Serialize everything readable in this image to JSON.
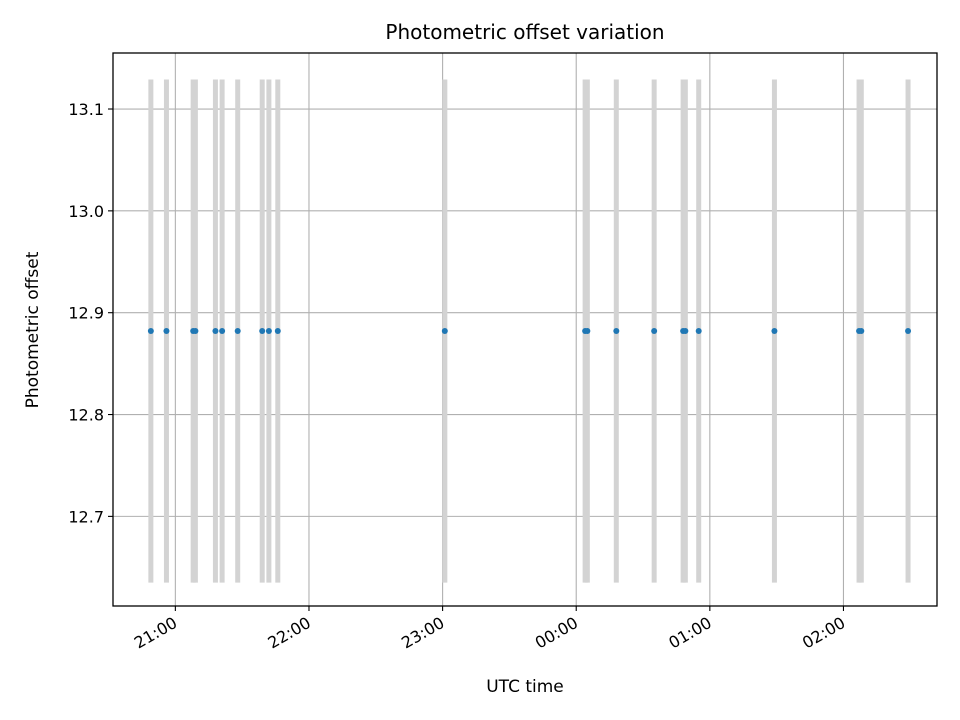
{
  "chart_data": {
    "type": "scatter",
    "title": "Photometric offset variation",
    "xlabel": "UTC time",
    "ylabel": "Photometric offset",
    "x_axis": {
      "kind": "time",
      "range": [
        "20:32",
        "02:42"
      ],
      "ticks": [
        "21:00",
        "22:00",
        "23:00",
        "00:00",
        "01:00",
        "02:00"
      ]
    },
    "y_axis": {
      "range": [
        12.612,
        13.155
      ],
      "ticks": [
        "12.7",
        "12.8",
        "12.9",
        "13.0",
        "13.1"
      ],
      "tick_values": [
        12.7,
        12.8,
        12.9,
        13.0,
        13.1
      ]
    },
    "grid": true,
    "series": [
      {
        "color": "#1f77b4",
        "marker": "dot",
        "error_bar_color": "#d3d3d3",
        "y_error": 0.247,
        "points": [
          {
            "x": "20:49",
            "y": 12.882
          },
          {
            "x": "20:56",
            "y": 12.882
          },
          {
            "x": "21:08",
            "y": 12.882
          },
          {
            "x": "21:09",
            "y": 12.882
          },
          {
            "x": "21:18",
            "y": 12.882
          },
          {
            "x": "21:21",
            "y": 12.882
          },
          {
            "x": "21:28",
            "y": 12.882
          },
          {
            "x": "21:39",
            "y": 12.882
          },
          {
            "x": "21:42",
            "y": 12.882
          },
          {
            "x": "21:46",
            "y": 12.882
          },
          {
            "x": "23:01",
            "y": 12.882
          },
          {
            "x": "00:04",
            "y": 12.882
          },
          {
            "x": "00:05",
            "y": 12.882
          },
          {
            "x": "00:18",
            "y": 12.882
          },
          {
            "x": "00:35",
            "y": 12.882
          },
          {
            "x": "00:48",
            "y": 12.882
          },
          {
            "x": "00:49",
            "y": 12.882
          },
          {
            "x": "00:55",
            "y": 12.882
          },
          {
            "x": "01:29",
            "y": 12.882
          },
          {
            "x": "02:07",
            "y": 12.882
          },
          {
            "x": "02:08",
            "y": 12.882
          },
          {
            "x": "02:29",
            "y": 12.882
          }
        ]
      }
    ]
  }
}
